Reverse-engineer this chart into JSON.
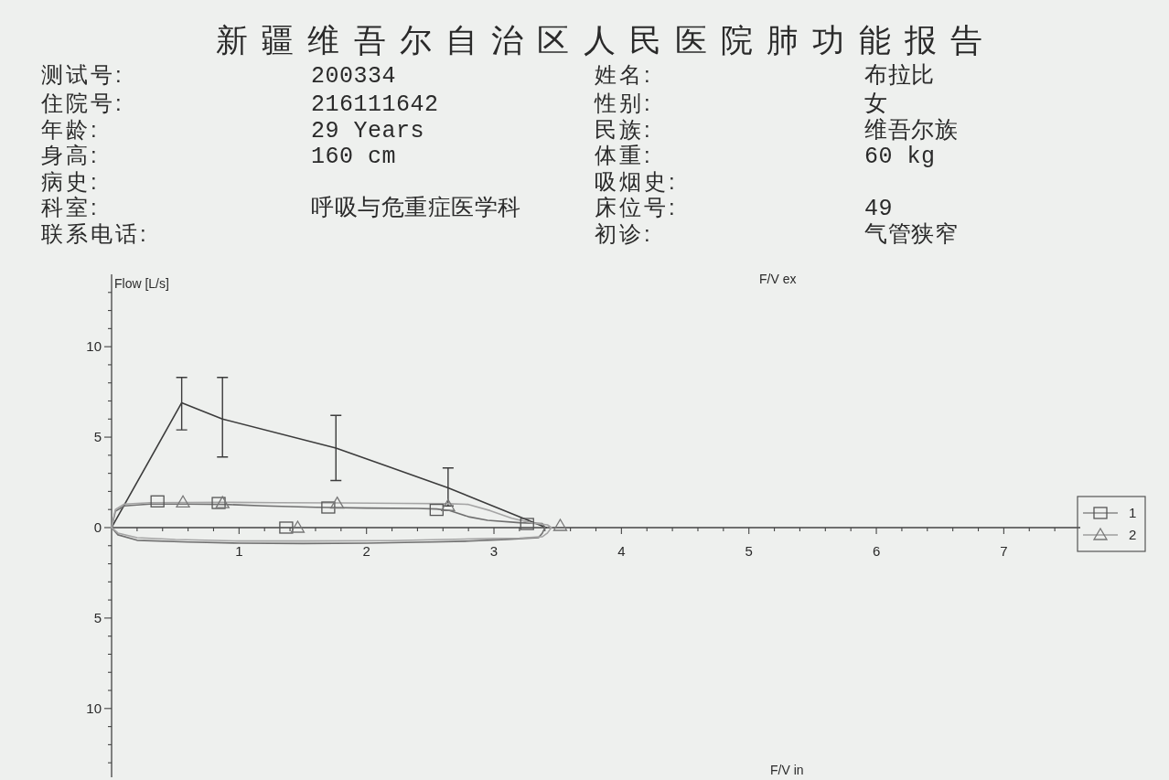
{
  "chart_data": [
    {
      "type": "other",
      "title": "新疆维吾尔自治区人民医院肺功能报告",
      "annotations": [
        "测试号:",
        "200334",
        "姓名:",
        "布拉比",
        "住院号:",
        "216111642",
        "性别:",
        "女",
        "年龄:",
        "29 Years",
        "民族:",
        "维吾尔族",
        "身高:",
        "160 cm",
        "体重:",
        "60 kg",
        "病史:",
        "吸烟史:",
        "科室:",
        "呼吸与危重症医学科",
        "床位号:",
        "49",
        "联系电话:",
        "初诊:",
        "气管狭窄"
      ]
    },
    {
      "type": "line",
      "ylabel": "Flow [L/s]",
      "annotations": [
        "F/V ex",
        "F/V in"
      ],
      "xlim": [
        0,
        7.6
      ],
      "ylim": [
        -13.8,
        14
      ],
      "xticks": [
        {
          "value": 0.2,
          "label": null
        },
        {
          "value": 0.4,
          "label": null
        },
        {
          "value": 0.6,
          "label": null
        },
        {
          "value": 0.8,
          "label": null
        },
        1,
        {
          "value": 1.2,
          "label": null
        },
        {
          "value": 1.4,
          "label": null
        },
        {
          "value": 1.6,
          "label": null
        },
        {
          "value": 1.8,
          "label": null
        },
        2,
        {
          "value": 2.2,
          "label": null
        },
        {
          "value": 2.4,
          "label": null
        },
        {
          "value": 2.6,
          "label": null
        },
        {
          "value": 2.8,
          "label": null
        },
        3,
        {
          "value": 3.2,
          "label": null
        },
        {
          "value": 3.4,
          "label": null
        },
        {
          "value": 3.6,
          "label": null
        },
        {
          "value": 3.8,
          "label": null
        },
        4,
        {
          "value": 4.2,
          "label": null
        },
        {
          "value": 4.4,
          "label": null
        },
        {
          "value": 4.6,
          "label": null
        },
        {
          "value": 4.8,
          "label": null
        },
        5,
        {
          "value": 5.2,
          "label": null
        },
        {
          "value": 5.4,
          "label": null
        },
        {
          "value": 5.6,
          "label": null
        },
        {
          "value": 5.8,
          "label": null
        },
        6,
        {
          "value": 6.2,
          "label": null
        },
        {
          "value": 6.4,
          "label": null
        },
        {
          "value": 6.6,
          "label": null
        },
        {
          "value": 6.8,
          "label": null
        },
        7,
        {
          "value": 7.2,
          "label": null
        },
        {
          "value": 7.4,
          "label": null
        }
      ],
      "yticks": [
        {
          "value": 13,
          "label": null
        },
        {
          "value": 12,
          "label": null
        },
        {
          "value": 11,
          "label": null
        },
        10,
        {
          "value": 9,
          "label": null
        },
        {
          "value": 8,
          "label": null
        },
        {
          "value": 7,
          "label": null
        },
        {
          "value": 6,
          "label": null
        },
        5,
        {
          "value": 4,
          "label": null
        },
        {
          "value": 3,
          "label": null
        },
        {
          "value": 2,
          "label": null
        },
        {
          "value": 1,
          "label": null
        },
        0,
        {
          "value": -1,
          "label": null
        },
        {
          "value": -2,
          "label": null
        },
        {
          "value": -3,
          "label": null
        },
        {
          "value": -4,
          "label": null
        },
        {
          "value": -5,
          "label": "5"
        },
        {
          "value": -6,
          "label": null
        },
        {
          "value": -7,
          "label": null
        },
        {
          "value": -8,
          "label": null
        },
        {
          "value": -9,
          "label": null
        },
        {
          "value": -10,
          "label": "10"
        },
        {
          "value": -11,
          "label": null
        },
        {
          "value": -12,
          "label": null
        },
        {
          "value": -13,
          "label": null
        }
      ],
      "legend": "right",
      "series": [
        {
          "type": "line",
          "color": "#3c3c3c",
          "x": [
            0,
            0.55,
            0.87,
            1.76,
            2.64,
            3.41
          ],
          "values": [
            0,
            6.9,
            6.0,
            4.4,
            2.2,
            0
          ],
          "errors": [
            null,
            [
              5.4,
              8.3
            ],
            [
              3.9,
              8.3
            ],
            [
              2.6,
              6.2
            ],
            [
              1.2,
              3.3
            ],
            null
          ]
        },
        {
          "type": "line",
          "color": "#707070",
          "x": [
            0,
            0.03,
            0.1,
            0.3,
            0.6,
            0.9,
            1.2,
            1.6,
            2.0,
            2.4,
            2.55,
            2.65,
            2.8,
            2.95,
            3.2,
            3.38,
            3.4
          ],
          "values": [
            0,
            0.9,
            1.2,
            1.3,
            1.3,
            1.28,
            1.2,
            1.12,
            1.08,
            1.06,
            1.03,
            0.95,
            0.6,
            0.4,
            0.27,
            0.22,
            0
          ]
        },
        {
          "type": "line",
          "color": "#707070",
          "x": [
            0,
            0.05,
            0.2,
            0.6,
            1.0,
            1.5,
            2.0,
            2.5,
            2.8,
            3.1,
            3.35,
            3.38,
            3.4
          ],
          "values": [
            0,
            -0.4,
            -0.7,
            -0.8,
            -0.86,
            -0.88,
            -0.86,
            -0.8,
            -0.75,
            -0.65,
            -0.55,
            -0.3,
            0
          ]
        },
        {
          "type": "line",
          "color": "#a5a5a5",
          "x": [
            0,
            0.03,
            0.1,
            0.3,
            0.9,
            1.3,
            1.8,
            2.3,
            2.65,
            2.8,
            2.97,
            3.14,
            3.29,
            3.42,
            3.45
          ],
          "values": [
            0,
            1.0,
            1.3,
            1.38,
            1.4,
            1.38,
            1.36,
            1.34,
            1.32,
            1.28,
            0.94,
            0.52,
            0.27,
            0.15,
            0
          ]
        },
        {
          "type": "line",
          "color": "#a5a5a5",
          "x": [
            0,
            0.05,
            0.2,
            0.5,
            1.0,
            1.5,
            2.2,
            2.6,
            3.0,
            3.2,
            3.38,
            3.42,
            3.45
          ],
          "values": [
            0,
            -0.3,
            -0.56,
            -0.66,
            -0.74,
            -0.74,
            -0.72,
            -0.66,
            -0.6,
            -0.58,
            -0.5,
            -0.3,
            0
          ]
        },
        {
          "type": "scatter",
          "name": "1",
          "color": "#555555",
          "marker": "square",
          "x": [
            0.36,
            0.84,
            1.37,
            1.7,
            2.55,
            3.26
          ],
          "values": [
            1.45,
            1.36,
            0,
            1.11,
            0.98,
            0.2
          ]
        },
        {
          "type": "scatter",
          "name": "2",
          "color": "#777777",
          "marker": "triangle",
          "x": [
            0.56,
            0.87,
            1.46,
            1.77,
            2.64,
            3.52
          ],
          "values": [
            1.4,
            1.36,
            0,
            1.33,
            1.2,
            0.1
          ]
        }
      ]
    }
  ]
}
